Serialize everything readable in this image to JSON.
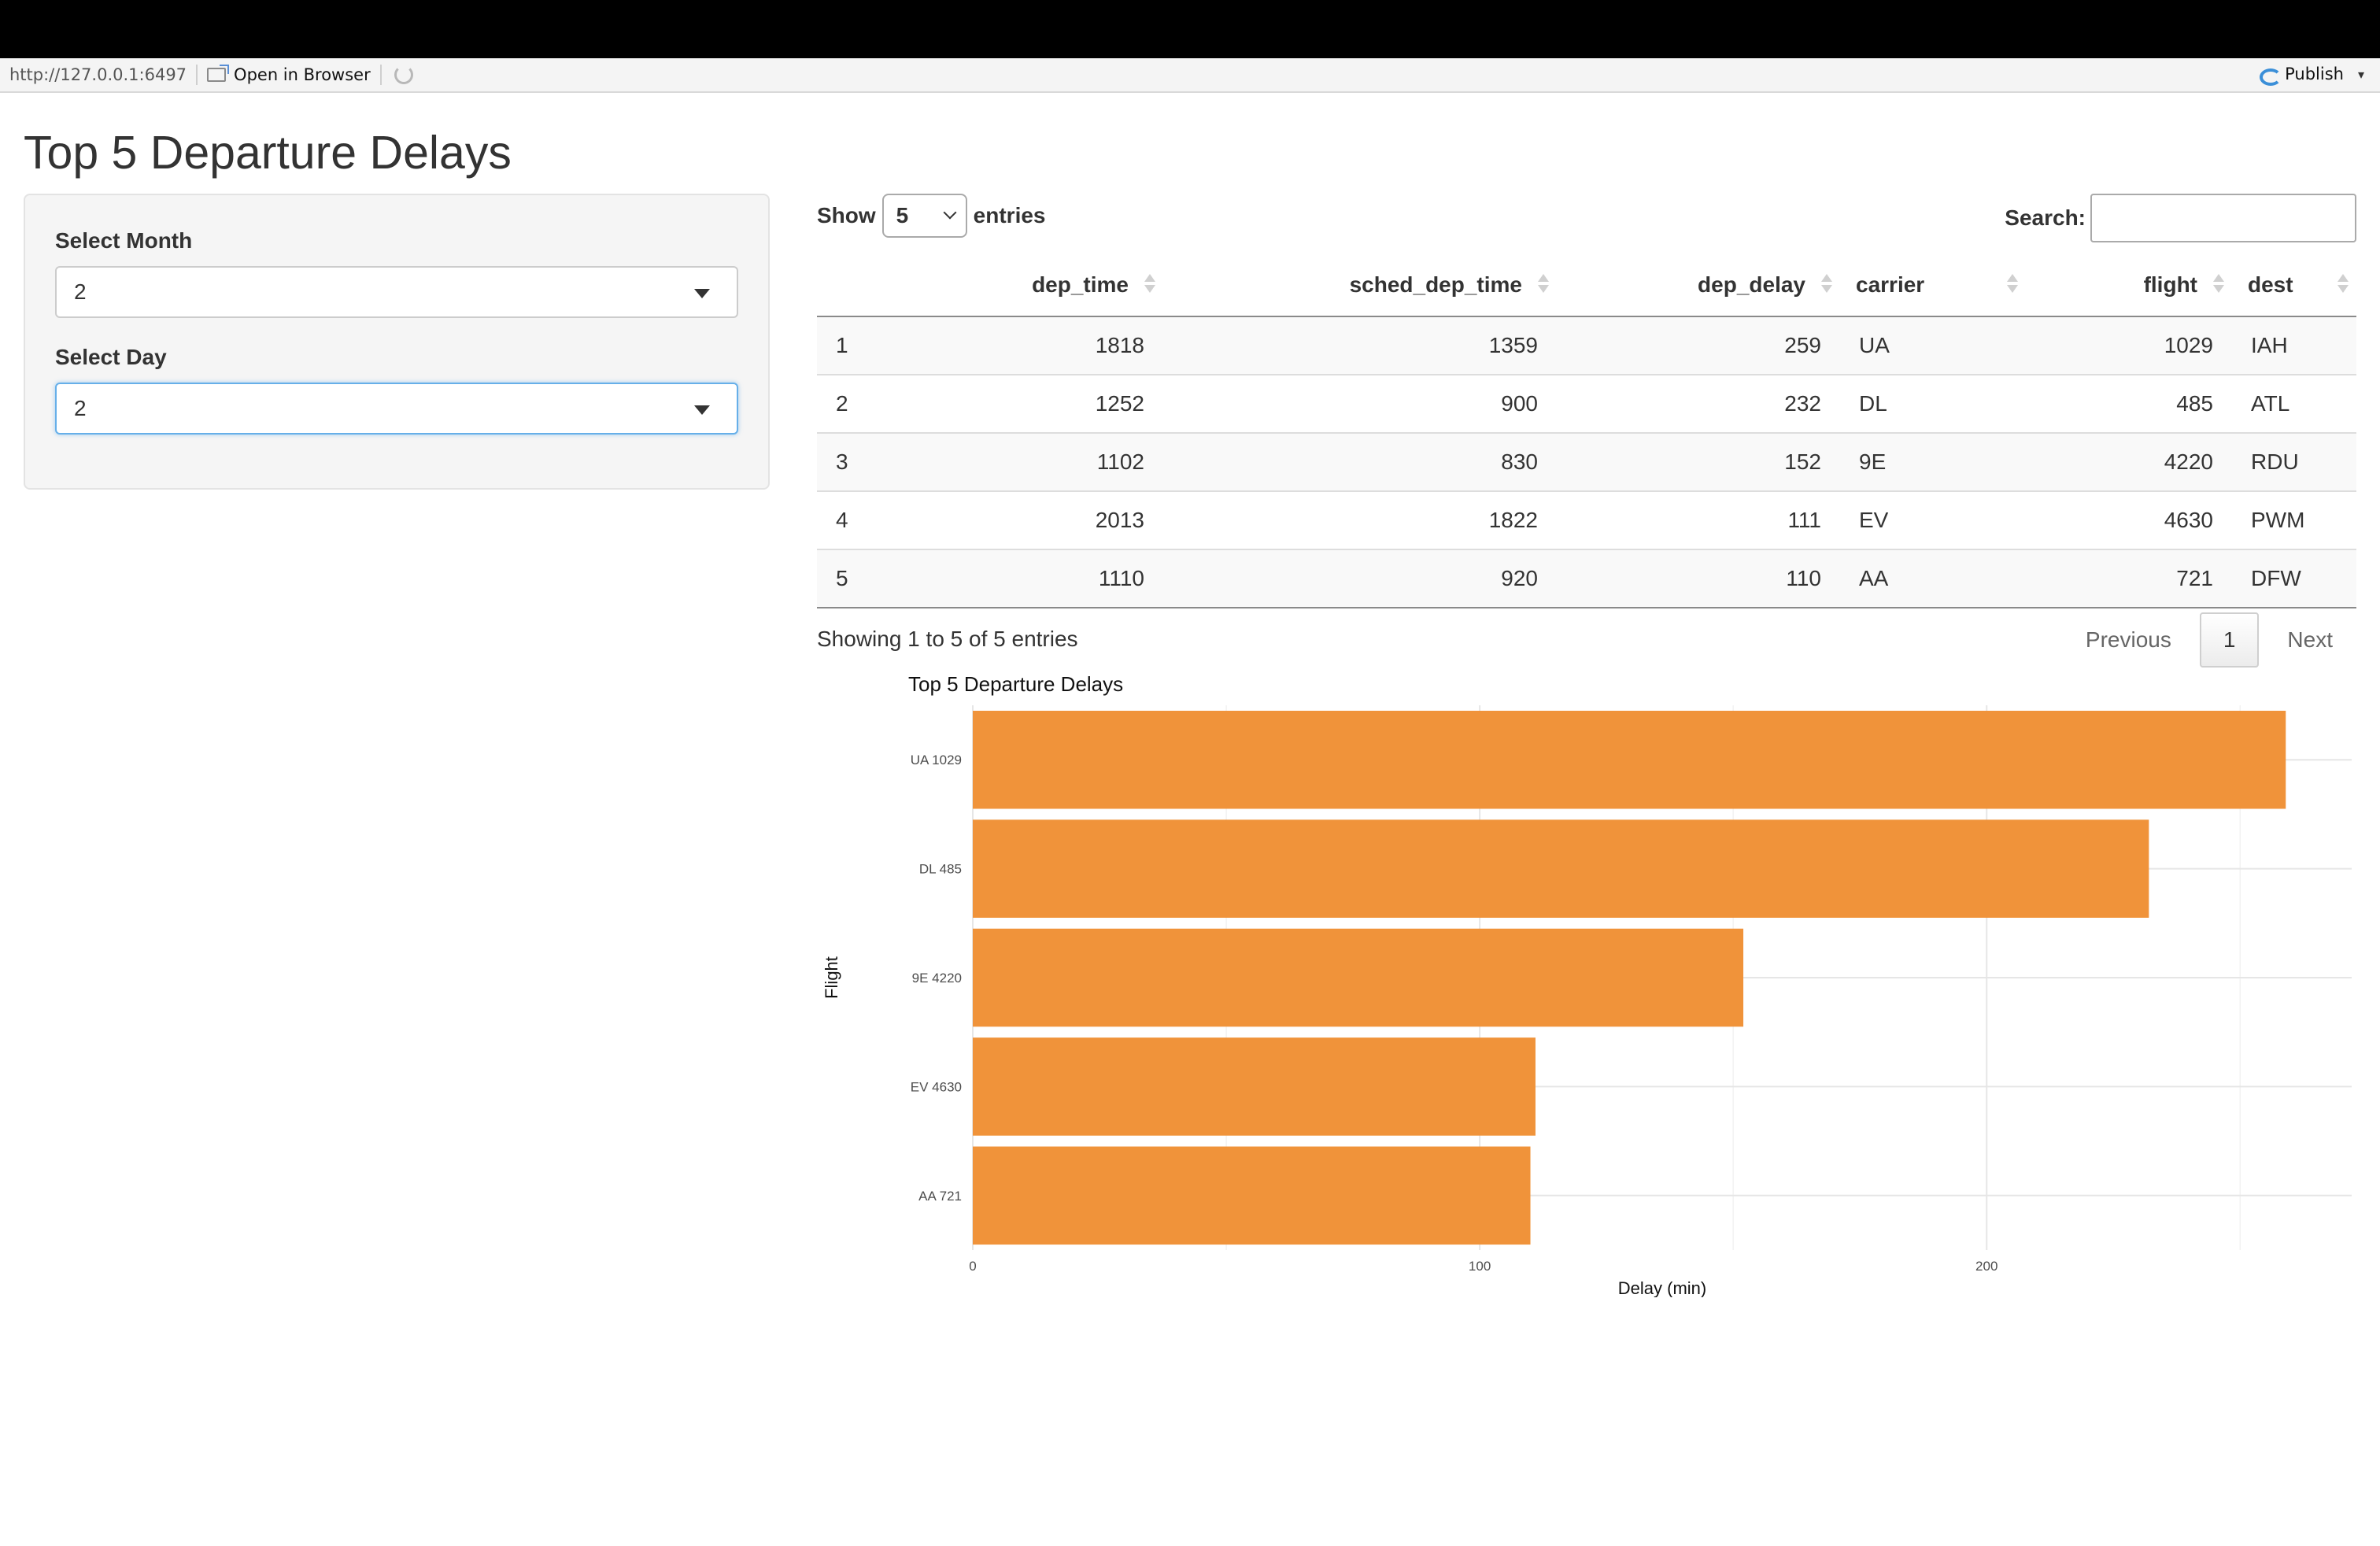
{
  "viewer": {
    "url": "http://127.0.0.1:6497",
    "open_in_browser": "Open in Browser",
    "publish": "Publish"
  },
  "page": {
    "title": "Top 5 Departure Delays"
  },
  "sidebar": {
    "month_label": "Select Month",
    "month_value": "2",
    "day_label": "Select Day",
    "day_value": "2"
  },
  "table_controls": {
    "show_label": "Show",
    "length_value": "5",
    "entries_label": "entries",
    "search_label": "Search:",
    "search_value": ""
  },
  "table": {
    "columns": [
      "",
      "dep_time",
      "sched_dep_time",
      "dep_delay",
      "carrier",
      "flight",
      "dest"
    ],
    "rows": [
      [
        "1",
        "1818",
        "1359",
        "259",
        "UA",
        "1029",
        "IAH"
      ],
      [
        "2",
        "1252",
        "900",
        "232",
        "DL",
        "485",
        "ATL"
      ],
      [
        "3",
        "1102",
        "830",
        "152",
        "9E",
        "4220",
        "RDU"
      ],
      [
        "4",
        "2013",
        "1822",
        "111",
        "EV",
        "4630",
        "PWM"
      ],
      [
        "5",
        "1110",
        "920",
        "110",
        "AA",
        "721",
        "DFW"
      ]
    ],
    "info": "Showing 1 to 5 of 5 entries",
    "previous": "Previous",
    "current_page": "1",
    "next": "Next"
  },
  "chart_data": {
    "type": "bar",
    "orientation": "horizontal",
    "title": "Top 5 Departure Delays",
    "xlabel": "Delay (min)",
    "ylabel": "Flight",
    "categories": [
      "UA 1029",
      "DL 485",
      "9E 4220",
      "EV 4630",
      "AA 721"
    ],
    "values": [
      259,
      232,
      152,
      111,
      110
    ],
    "xlim": [
      0,
      272
    ],
    "x_ticks": [
      0,
      100,
      200
    ],
    "bar_color": "#f0933a",
    "grid": true
  }
}
